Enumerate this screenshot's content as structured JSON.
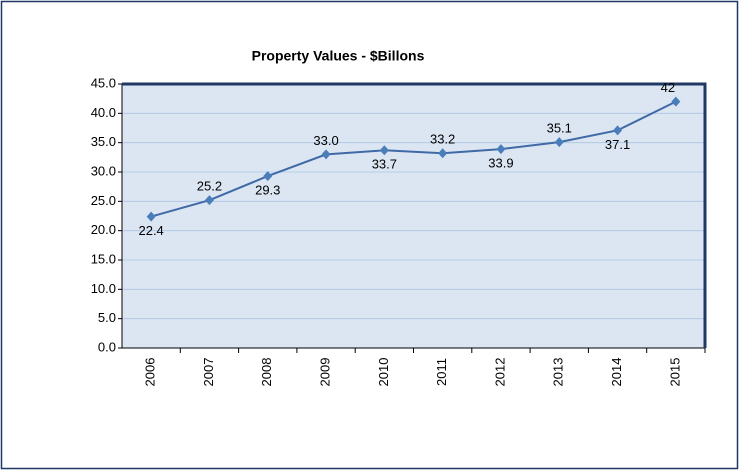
{
  "chart_data": {
    "type": "line",
    "title": "Property Values - $Billons",
    "categories": [
      "2006",
      "2007",
      "2008",
      "2009",
      "2010",
      "2011",
      "2012",
      "2013",
      "2014",
      "2015"
    ],
    "values": [
      22.4,
      25.2,
      29.3,
      33.0,
      33.7,
      33.2,
      33.9,
      35.1,
      37.1,
      42
    ],
    "value_labels": [
      "22.4",
      "25.2",
      "29.3",
      "33.0",
      "33.7",
      "33.2",
      "33.9",
      "35.1",
      "37.1",
      "42"
    ],
    "color": "#3f6aa6",
    "ylim": [
      0,
      45
    ],
    "yticks": [
      {
        "value": 0,
        "label": "0.0"
      },
      {
        "value": 5,
        "label": "5.0"
      },
      {
        "value": 10,
        "label": "10.0"
      },
      {
        "value": 15,
        "label": "15.0"
      },
      {
        "value": 20,
        "label": "20.0"
      },
      {
        "value": 25,
        "label": "25.0"
      },
      {
        "value": 30,
        "label": "30.0"
      },
      {
        "value": 35,
        "label": "35.0"
      },
      {
        "value": 40,
        "label": "40.0"
      },
      {
        "value": 45,
        "label": "45.0"
      }
    ],
    "grid": true
  }
}
